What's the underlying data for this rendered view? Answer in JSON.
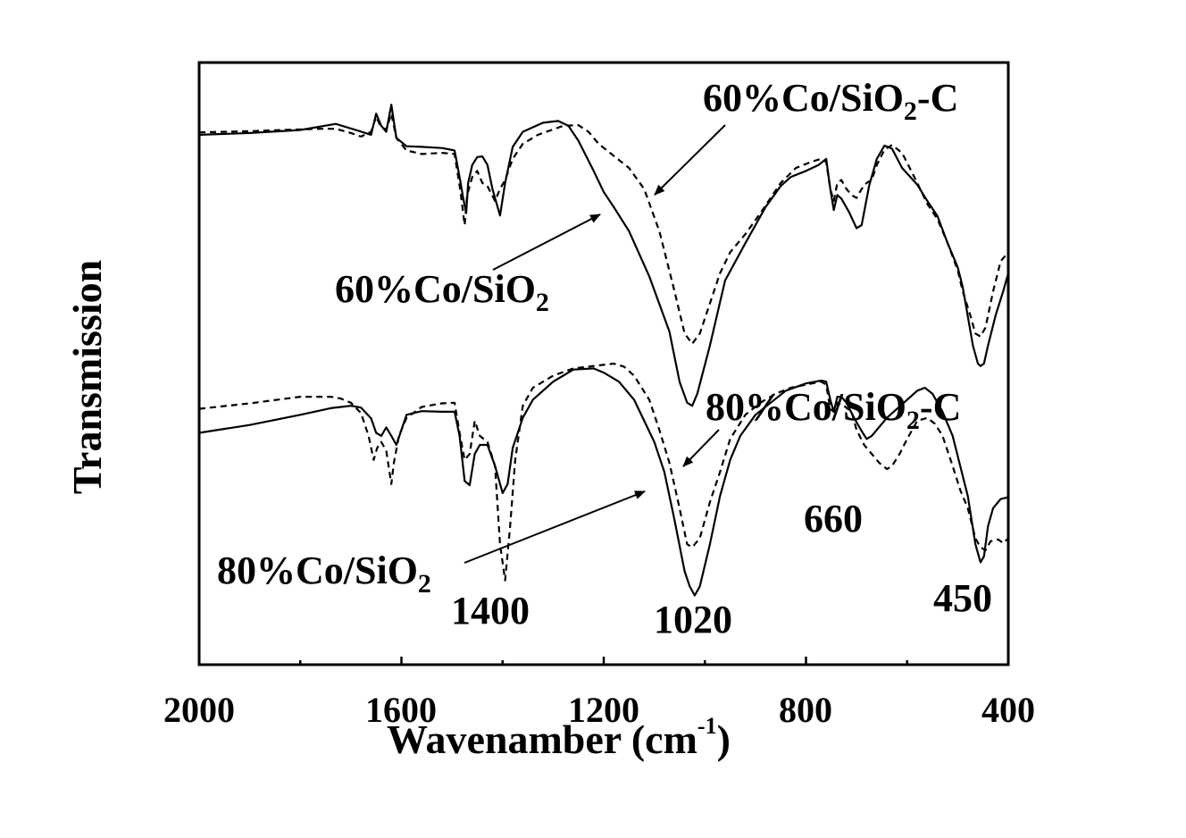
{
  "chart_data": {
    "type": "line",
    "xlabel": "Wavenamber (cm",
    "xlabel_sup": "-1",
    "xlabel_close": ")",
    "ylabel": "Transmission",
    "x_reversed": true,
    "xlim": [
      2000,
      400
    ],
    "ylim": [
      0,
      100
    ],
    "grid": false,
    "xticks": [
      2000,
      1600,
      1200,
      800,
      400
    ],
    "xtick_labels": [
      "2000",
      "1600",
      "1200",
      "800",
      "400"
    ],
    "series": [
      {
        "label": {
          "main": "60%Co/SiO",
          "sub": "2"
        },
        "line_style": "solid",
        "color": "#000000",
        "points": [
          [
            2000,
            88
          ],
          [
            1900,
            88.3
          ],
          [
            1800,
            88.8
          ],
          [
            1730,
            89.8
          ],
          [
            1690,
            88.8
          ],
          [
            1660,
            88
          ],
          [
            1650,
            91.5
          ],
          [
            1640,
            89.5
          ],
          [
            1630,
            88.5
          ],
          [
            1620,
            93
          ],
          [
            1610,
            87.5
          ],
          [
            1590,
            86.1
          ],
          [
            1560,
            86
          ],
          [
            1520,
            85.8
          ],
          [
            1495,
            85.4
          ],
          [
            1484,
            80.5
          ],
          [
            1478,
            77.5
          ],
          [
            1472,
            75
          ],
          [
            1468,
            80
          ],
          [
            1460,
            83
          ],
          [
            1450,
            84.3
          ],
          [
            1440,
            84.4
          ],
          [
            1430,
            83
          ],
          [
            1420,
            79
          ],
          [
            1405,
            74.6
          ],
          [
            1395,
            80
          ],
          [
            1380,
            86
          ],
          [
            1360,
            88.5
          ],
          [
            1320,
            90
          ],
          [
            1290,
            90.3
          ],
          [
            1270,
            89.5
          ],
          [
            1250,
            87
          ],
          [
            1220,
            82
          ],
          [
            1200,
            78.5
          ],
          [
            1180,
            76
          ],
          [
            1150,
            72
          ],
          [
            1110,
            64.5
          ],
          [
            1070,
            55.3
          ],
          [
            1050,
            47
          ],
          [
            1035,
            43.5
          ],
          [
            1025,
            43
          ],
          [
            1015,
            45
          ],
          [
            990,
            53
          ],
          [
            960,
            63.8
          ],
          [
            920,
            70
          ],
          [
            880,
            76
          ],
          [
            850,
            79.5
          ],
          [
            830,
            81
          ],
          [
            800,
            82
          ],
          [
            775,
            83
          ],
          [
            760,
            84
          ],
          [
            752,
            79
          ],
          [
            745,
            75.5
          ],
          [
            738,
            78
          ],
          [
            730,
            77.4
          ],
          [
            715,
            75.2
          ],
          [
            700,
            72.5
          ],
          [
            690,
            73
          ],
          [
            675,
            79.6
          ],
          [
            660,
            84
          ],
          [
            645,
            86.2
          ],
          [
            630,
            85.7
          ],
          [
            610,
            82.5
          ],
          [
            580,
            79.7
          ],
          [
            560,
            77
          ],
          [
            540,
            74.5
          ],
          [
            520,
            70
          ],
          [
            500,
            66
          ],
          [
            490,
            62.7
          ],
          [
            470,
            53
          ],
          [
            460,
            50
          ],
          [
            455,
            49.6
          ],
          [
            448,
            50
          ],
          [
            440,
            53
          ],
          [
            425,
            58
          ],
          [
            410,
            62
          ],
          [
            400,
            65
          ]
        ]
      },
      {
        "label": {
          "main": "60%Co/SiO",
          "sub": "2",
          "suffix": "-C"
        },
        "line_style": "dashed",
        "color": "#000000",
        "points": [
          [
            2000,
            88.4
          ],
          [
            1900,
            88.6
          ],
          [
            1800,
            88.9
          ],
          [
            1760,
            89
          ],
          [
            1730,
            89
          ],
          [
            1700,
            88.3
          ],
          [
            1680,
            87.7
          ],
          [
            1660,
            88.5
          ],
          [
            1650,
            91
          ],
          [
            1640,
            89.2
          ],
          [
            1630,
            88.9
          ],
          [
            1620,
            91.5
          ],
          [
            1610,
            87.5
          ],
          [
            1590,
            85.4
          ],
          [
            1560,
            84.8
          ],
          [
            1520,
            85
          ],
          [
            1495,
            84.8
          ],
          [
            1484,
            79
          ],
          [
            1475,
            73
          ],
          [
            1470,
            78
          ],
          [
            1460,
            81
          ],
          [
            1450,
            82
          ],
          [
            1440,
            80
          ],
          [
            1430,
            79.5
          ],
          [
            1415,
            77
          ],
          [
            1405,
            79
          ],
          [
            1395,
            80.5
          ],
          [
            1380,
            84
          ],
          [
            1360,
            86.5
          ],
          [
            1330,
            88
          ],
          [
            1280,
            89.5
          ],
          [
            1250,
            89.6
          ],
          [
            1230,
            88.5
          ],
          [
            1210,
            86.5
          ],
          [
            1180,
            84.5
          ],
          [
            1150,
            82.5
          ],
          [
            1120,
            79
          ],
          [
            1090,
            72
          ],
          [
            1060,
            62
          ],
          [
            1040,
            55
          ],
          [
            1025,
            53.3
          ],
          [
            1010,
            55
          ],
          [
            990,
            60
          ],
          [
            970,
            65
          ],
          [
            950,
            68.5
          ],
          [
            920,
            71.5
          ],
          [
            890,
            75
          ],
          [
            850,
            80
          ],
          [
            820,
            82.5
          ],
          [
            790,
            83.5
          ],
          [
            770,
            84
          ],
          [
            760,
            83.5
          ],
          [
            752,
            79
          ],
          [
            745,
            77
          ],
          [
            738,
            80
          ],
          [
            730,
            80.5
          ],
          [
            720,
            79
          ],
          [
            710,
            78
          ],
          [
            700,
            77.5
          ],
          [
            690,
            79
          ],
          [
            680,
            80
          ],
          [
            670,
            80.5
          ],
          [
            660,
            83
          ],
          [
            645,
            85.5
          ],
          [
            630,
            86.3
          ],
          [
            610,
            85
          ],
          [
            580,
            80
          ],
          [
            560,
            76.5
          ],
          [
            540,
            74
          ],
          [
            520,
            70
          ],
          [
            500,
            65.5
          ],
          [
            490,
            62
          ],
          [
            475,
            58
          ],
          [
            465,
            55
          ],
          [
            455,
            54.5
          ],
          [
            445,
            56
          ],
          [
            430,
            62
          ],
          [
            415,
            67
          ],
          [
            400,
            68.5
          ]
        ]
      },
      {
        "label": {
          "main": "80%Co/SiO",
          "sub": "2"
        },
        "line_style": "solid",
        "color": "#000000",
        "points": [
          [
            2000,
            38.5
          ],
          [
            1900,
            39.8
          ],
          [
            1800,
            41.5
          ],
          [
            1740,
            42.6
          ],
          [
            1700,
            43
          ],
          [
            1680,
            42.7
          ],
          [
            1660,
            40.9
          ],
          [
            1650,
            38.5
          ],
          [
            1640,
            38
          ],
          [
            1630,
            39.4
          ],
          [
            1620,
            38
          ],
          [
            1610,
            36.5
          ],
          [
            1590,
            41.5
          ],
          [
            1560,
            42.1
          ],
          [
            1520,
            42
          ],
          [
            1495,
            42
          ],
          [
            1485,
            38
          ],
          [
            1475,
            30.5
          ],
          [
            1465,
            29.8
          ],
          [
            1455,
            35
          ],
          [
            1445,
            36.5
          ],
          [
            1430,
            36.5
          ],
          [
            1415,
            33
          ],
          [
            1400,
            28.5
          ],
          [
            1390,
            30
          ],
          [
            1380,
            36
          ],
          [
            1360,
            41
          ],
          [
            1340,
            44
          ],
          [
            1300,
            47
          ],
          [
            1260,
            49
          ],
          [
            1220,
            49.2
          ],
          [
            1200,
            48.5
          ],
          [
            1170,
            47
          ],
          [
            1140,
            44
          ],
          [
            1100,
            37
          ],
          [
            1080,
            32
          ],
          [
            1060,
            24
          ],
          [
            1040,
            15.5
          ],
          [
            1030,
            13
          ],
          [
            1020,
            11.5
          ],
          [
            1010,
            13
          ],
          [
            990,
            20
          ],
          [
            970,
            28
          ],
          [
            950,
            34
          ],
          [
            930,
            38
          ],
          [
            900,
            41.5
          ],
          [
            870,
            43.5
          ],
          [
            840,
            45.5
          ],
          [
            800,
            46.7
          ],
          [
            770,
            47.2
          ],
          [
            760,
            47
          ],
          [
            752,
            44
          ],
          [
            745,
            42
          ],
          [
            738,
            44.5
          ],
          [
            730,
            44.5
          ],
          [
            720,
            43.5
          ],
          [
            705,
            41
          ],
          [
            690,
            38.8
          ],
          [
            680,
            37.5
          ],
          [
            670,
            38
          ],
          [
            655,
            39.5
          ],
          [
            640,
            41
          ],
          [
            620,
            42.5
          ],
          [
            600,
            44
          ],
          [
            580,
            45.5
          ],
          [
            565,
            46
          ],
          [
            550,
            45
          ],
          [
            530,
            42
          ],
          [
            510,
            38
          ],
          [
            495,
            33
          ],
          [
            480,
            28
          ],
          [
            465,
            20
          ],
          [
            455,
            17
          ],
          [
            448,
            18
          ],
          [
            440,
            23
          ],
          [
            430,
            26
          ],
          [
            415,
            27.5
          ],
          [
            400,
            27.8
          ]
        ]
      },
      {
        "label": {
          "main": "80%Co/SiO",
          "sub": "2",
          "suffix": "-C"
        },
        "line_style": "dashed",
        "color": "#000000",
        "points": [
          [
            2000,
            42.5
          ],
          [
            1900,
            43.4
          ],
          [
            1800,
            44.5
          ],
          [
            1740,
            44.5
          ],
          [
            1720,
            44.2
          ],
          [
            1700,
            43.5
          ],
          [
            1680,
            41.8
          ],
          [
            1665,
            38
          ],
          [
            1655,
            34
          ],
          [
            1648,
            36
          ],
          [
            1640,
            37
          ],
          [
            1630,
            35.5
          ],
          [
            1620,
            30
          ],
          [
            1615,
            33.5
          ],
          [
            1605,
            38
          ],
          [
            1590,
            41
          ],
          [
            1560,
            42.8
          ],
          [
            1520,
            43.4
          ],
          [
            1495,
            43.5
          ],
          [
            1485,
            38.5
          ],
          [
            1475,
            34
          ],
          [
            1465,
            35
          ],
          [
            1455,
            40.5
          ],
          [
            1445,
            38
          ],
          [
            1430,
            37
          ],
          [
            1415,
            33
          ],
          [
            1405,
            20
          ],
          [
            1395,
            14
          ],
          [
            1385,
            23
          ],
          [
            1375,
            34
          ],
          [
            1360,
            43
          ],
          [
            1340,
            46
          ],
          [
            1300,
            48
          ],
          [
            1260,
            49.2
          ],
          [
            1220,
            49.6
          ],
          [
            1180,
            50
          ],
          [
            1160,
            49.5
          ],
          [
            1140,
            48
          ],
          [
            1110,
            44
          ],
          [
            1090,
            39
          ],
          [
            1070,
            33.5
          ],
          [
            1050,
            26
          ],
          [
            1035,
            20
          ],
          [
            1025,
            19.5
          ],
          [
            1010,
            21
          ],
          [
            990,
            27
          ],
          [
            970,
            32
          ],
          [
            950,
            37.5
          ],
          [
            920,
            41.5
          ],
          [
            890,
            43.5
          ],
          [
            860,
            45
          ],
          [
            830,
            46
          ],
          [
            800,
            46.5
          ],
          [
            770,
            47
          ],
          [
            760,
            46.5
          ],
          [
            752,
            42.5
          ],
          [
            745,
            42
          ],
          [
            738,
            43.5
          ],
          [
            725,
            43
          ],
          [
            710,
            42
          ],
          [
            700,
            39
          ],
          [
            685,
            36.5
          ],
          [
            670,
            35
          ],
          [
            655,
            33.5
          ],
          [
            640,
            32.5
          ],
          [
            630,
            33
          ],
          [
            615,
            35
          ],
          [
            600,
            37.5
          ],
          [
            580,
            40.5
          ],
          [
            560,
            41
          ],
          [
            545,
            40
          ],
          [
            530,
            38
          ],
          [
            510,
            33
          ],
          [
            495,
            29
          ],
          [
            480,
            26
          ],
          [
            465,
            21
          ],
          [
            455,
            19.5
          ],
          [
            445,
            19
          ],
          [
            435,
            20.5
          ],
          [
            420,
            20.8
          ],
          [
            410,
            20.2
          ],
          [
            400,
            21
          ]
        ]
      }
    ],
    "annotations": [
      {
        "text": "1400"
      },
      {
        "text": "1020"
      },
      {
        "text": "660"
      },
      {
        "text": "450"
      }
    ]
  }
}
